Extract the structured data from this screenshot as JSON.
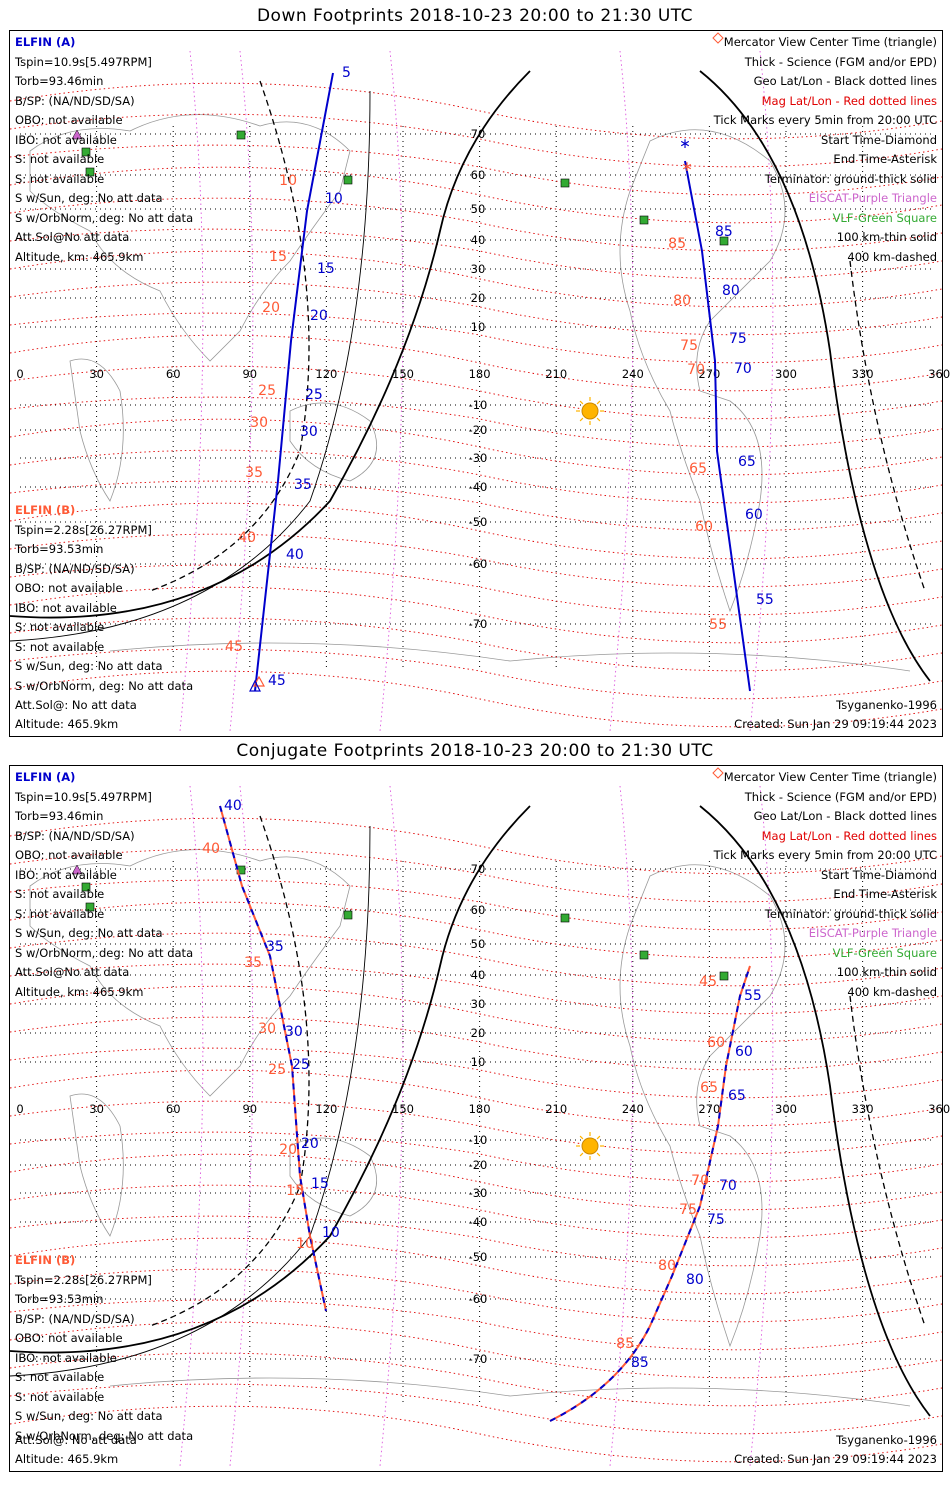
{
  "colors": {
    "elfin_a": "#0000cc",
    "elfin_b": "#ff5a36",
    "mag_grid": "#e00000",
    "geo_grid": "#000000",
    "eiscat": "#cc66cc",
    "vlf": "#33aa33",
    "sun": "#ffb400"
  },
  "axis": {
    "lon_ticks": [
      "0",
      "30",
      "60",
      "90",
      "120",
      "150",
      "180",
      "210",
      "240",
      "270",
      "300",
      "330",
      "360"
    ],
    "lat_ticks": [
      "70",
      "60",
      "50",
      "40",
      "30",
      "20",
      "10",
      "-10",
      "-20",
      "-30",
      "-40",
      "-50",
      "-60",
      "-70"
    ]
  },
  "legend": [
    "Mercator View Center Time (triangle)",
    "Thick - Science (FGM and/or EPD)",
    "Geo Lat/Lon - Black dotted lines",
    "Mag Lat/Lon - Red dotted lines",
    "Tick Marks every 5min from 20:00 UTC",
    "Start Time-Diamond",
    "End Time-Asterisk",
    "Terminator: ground-thick solid",
    "EISCAT-Purple Triangle",
    "VLF-Green Square",
    "100 km-thin solid",
    "400 km-dashed"
  ],
  "elfin_a": {
    "header": "ELFIN (A)",
    "lines": [
      "Tspin=10.9s[5.497RPM]",
      "Torb=93.46min",
      "B/SP: (NA/ND/SD/SA)",
      "OBO: not available",
      "IBO: not available",
      "S: not available",
      "S: not available",
      "S w/Sun, deg: No att data",
      "S w/OrbNorm, deg: No att data",
      "Att.Sol@No att data",
      "Altitude, km: 465.9km"
    ]
  },
  "elfin_b": {
    "header": "ELFIN (B)",
    "lines": [
      "Tspin=2.28s[26.27RPM]",
      "Torb=93.53min",
      "B/SP: (NA/ND/SD/SA)",
      "OBO: not available",
      "IBO: not available",
      "S: not available",
      "S: not available",
      "S w/Sun, deg: No att data",
      "S w/OrbNorm, deg: No att data"
    ],
    "att": "Att.Sol@: No att data",
    "altitude": "Altitude: 465.9km"
  },
  "model": "Tsyganenko-1996",
  "created": "Created: Sun Jan 29 09:19:44 2023",
  "panels": [
    {
      "title": "Down Footprints 2018-10-23 20:00 to 21:30 UTC",
      "marks_a_west": [
        "5",
        "10",
        "15",
        "20",
        "25",
        "30",
        "35",
        "40",
        "45"
      ],
      "marks_b_west": [
        "10",
        "15",
        "20",
        "25",
        "30",
        "35",
        "40",
        "45"
      ],
      "marks_a_east": [
        "85",
        "80",
        "75",
        "70",
        "65",
        "60",
        "55"
      ],
      "marks_b_east": [
        "85",
        "80",
        "75",
        "70",
        "65",
        "60",
        "55"
      ]
    },
    {
      "title": "Conjugate Footprints 2018-10-23 20:00 to 21:30 UTC",
      "marks_a_west": [
        "40",
        "35",
        "30",
        "25",
        "20",
        "15",
        "10"
      ],
      "marks_b_west": [
        "40",
        "35",
        "30",
        "25",
        "20",
        "15",
        "10"
      ],
      "marks_a_east": [
        "55",
        "60",
        "65",
        "70",
        "75",
        "80",
        "85"
      ],
      "marks_b_east": [
        "45",
        "60",
        "65",
        "70",
        "75",
        "80",
        "85"
      ]
    }
  ]
}
